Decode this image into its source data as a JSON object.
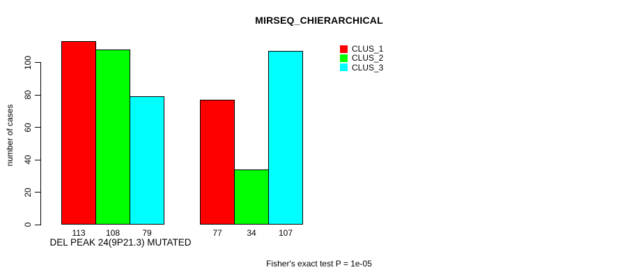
{
  "title": "MIRSEQ_CHIERARCHICAL",
  "annotation": "Fisher's exact test P = 1e-05",
  "chart_data": {
    "type": "bar",
    "title": "MIRSEQ_CHIERARCHICAL",
    "xlabel": "DEL PEAK 24(9P21.3) MUTATED",
    "ylabel": "number of cases",
    "annotation": "Fisher's exact test P = 1e-05",
    "grouped": true,
    "group_count": 2,
    "series": [
      {
        "name": "CLUS_1",
        "color": "#ff0000",
        "values": [
          113,
          77
        ]
      },
      {
        "name": "CLUS_2",
        "color": "#00ff00",
        "values": [
          108,
          34
        ]
      },
      {
        "name": "CLUS_3",
        "color": "#00ffff",
        "values": [
          79,
          107
        ]
      }
    ],
    "bar_value_labels": [
      [
        113,
        108,
        79
      ],
      [
        77,
        34,
        107
      ]
    ],
    "yticks": [
      0,
      20,
      40,
      60,
      80,
      100
    ],
    "ylim": [
      0,
      115
    ],
    "grid": false,
    "legend_position": "top-right",
    "bar_border_color": "#000000",
    "text_color": "#000000",
    "background_color": "#ffffff"
  }
}
